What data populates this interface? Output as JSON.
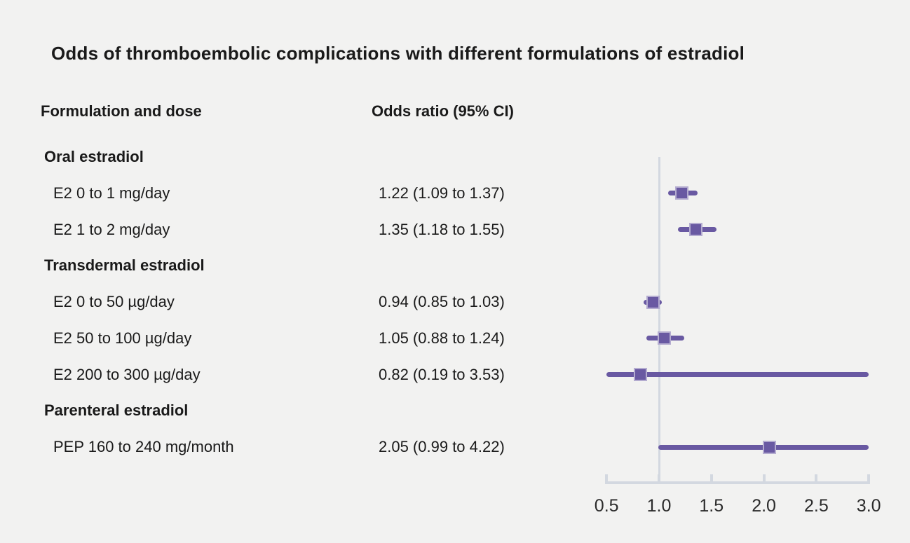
{
  "title": "Odds of thromboembolic complications with different formulations of estradiol",
  "columns": {
    "formulation": "Formulation and dose",
    "odds_ratio": "Odds ratio (95% CI)"
  },
  "colors": {
    "background": "#f2f2f1",
    "text": "#1a1a1a",
    "purple": "#6959a2",
    "purple_edge": "#b4acd0",
    "axis": "#d3d8e0"
  },
  "chart_data": {
    "type": "forest",
    "title": "Odds of thromboembolic complications with different formulations of estradiol",
    "xlim": [
      0.5,
      3.0
    ],
    "reference_line": 1.0,
    "x_ticks": [
      0.5,
      1.0,
      1.5,
      2.0,
      2.5,
      3.0
    ],
    "x_tick_labels": [
      "0.5",
      "1.0",
      "1.5",
      "2.0",
      "2.5",
      "3.0"
    ],
    "grid": false,
    "rows": [
      {
        "kind": "section",
        "label": "Oral estradiol"
      },
      {
        "kind": "item",
        "label": "E2 0 to 1 mg/day",
        "value_text": "1.22 (1.09 to 1.37)",
        "or": 1.22,
        "ci_low": 1.09,
        "ci_high": 1.37
      },
      {
        "kind": "item",
        "label": "E2 1 to 2 mg/day",
        "value_text": "1.35 (1.18 to 1.55)",
        "or": 1.35,
        "ci_low": 1.18,
        "ci_high": 1.55
      },
      {
        "kind": "section",
        "label": "Transdermal estradiol"
      },
      {
        "kind": "item",
        "label": "E2 0 to 50 µg/day",
        "value_text": "0.94 (0.85 to 1.03)",
        "or": 0.94,
        "ci_low": 0.85,
        "ci_high": 1.03
      },
      {
        "kind": "item",
        "label": "E2 50 to 100 µg/day",
        "value_text": "1.05 (0.88 to 1.24)",
        "or": 1.05,
        "ci_low": 0.88,
        "ci_high": 1.24
      },
      {
        "kind": "item",
        "label": "E2 200 to 300 µg/day",
        "value_text": "0.82 (0.19 to 3.53)",
        "or": 0.82,
        "ci_low": 0.19,
        "ci_high": 3.53
      },
      {
        "kind": "section",
        "label": "Parenteral estradiol"
      },
      {
        "kind": "item",
        "label": "PEP 160 to 240 mg/month",
        "value_text": "2.05 (0.99 to 4.22)",
        "or": 2.05,
        "ci_low": 0.99,
        "ci_high": 4.22
      }
    ]
  }
}
